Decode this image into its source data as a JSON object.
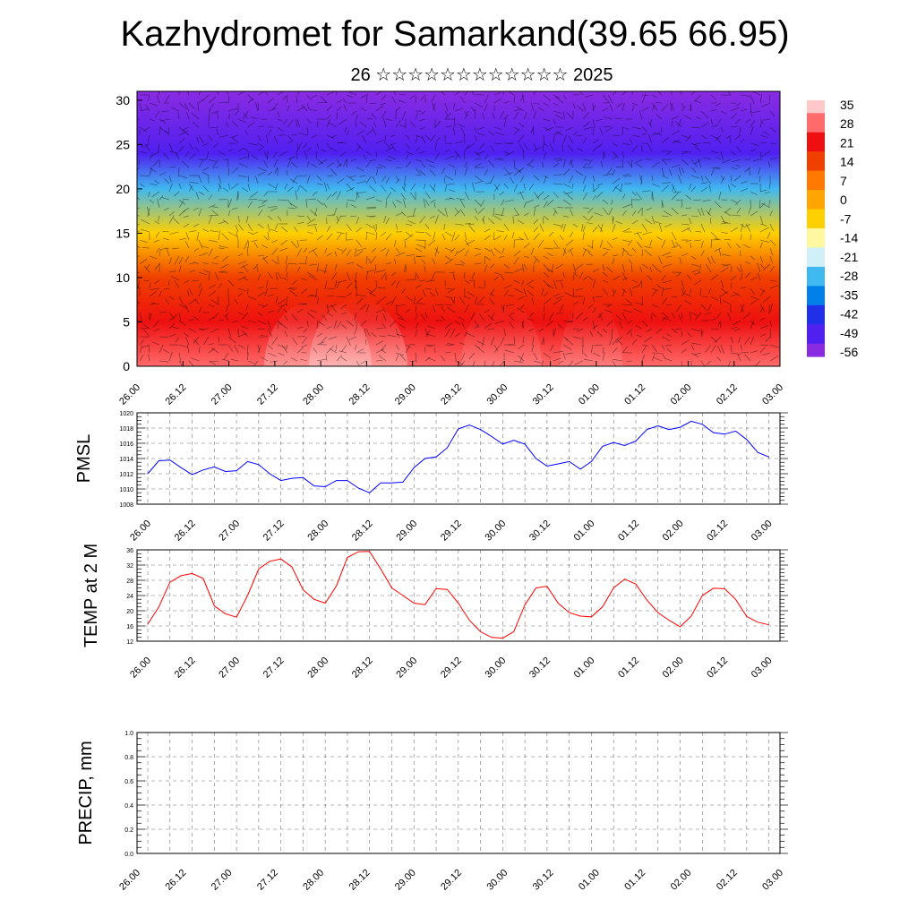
{
  "header": {
    "title": "Kazhydromet for Samarkand(39.65 66.95)",
    "subtitle": "26 ☆☆☆☆☆☆☆☆☆☆☆☆ 2025"
  },
  "chart_data": [
    {
      "type": "heatmap",
      "title": "Kazhydromet for Samarkand(39.65 66.95)",
      "subtitle": "26 ☆☆☆☆☆☆☆☆☆☆☆☆ 2025",
      "x_tick_labels": [
        "26.00",
        "26.12",
        "27.00",
        "27.12",
        "28.00",
        "28.12",
        "29.00",
        "29.12",
        "30.00",
        "30.12",
        "01.00",
        "01.12",
        "02.00",
        "02.12",
        "03.00"
      ],
      "y_ticks": [
        0,
        5,
        10,
        15,
        20,
        25,
        30
      ],
      "ylim": [
        0,
        31
      ],
      "colorbar_labels": [
        "35",
        "28",
        "21",
        "14",
        "7",
        "0",
        "-7",
        "-14",
        "-21",
        "-28",
        "-35",
        "-42",
        "-49",
        "-56"
      ],
      "colorbar_colors": [
        "#ffc8c8",
        "#ff6a6a",
        "#ee1010",
        "#f04000",
        "#ff7800",
        "#ffa500",
        "#ffd000",
        "#fff8a0",
        "#d0f0f8",
        "#40b8f0",
        "#0080e8",
        "#2030e8",
        "#5020f0",
        "#8a2be2"
      ],
      "vertical_profile": [
        {
          "height": 0,
          "value": 30
        },
        {
          "height": 5,
          "value": 24
        },
        {
          "height": 10,
          "value": 12
        },
        {
          "height": 15,
          "value": -5
        },
        {
          "height": 20,
          "value": -25
        },
        {
          "height": 24,
          "value": -50
        },
        {
          "height": 31,
          "value": -56
        }
      ],
      "overlay": "wind vectors",
      "grid": false
    },
    {
      "type": "line",
      "ylabel": "PMSL",
      "x_tick_labels": [
        "26.00",
        "26.12",
        "27.00",
        "27.12",
        "28.00",
        "28.12",
        "29.00",
        "29.12",
        "30.00",
        "30.12",
        "01.00",
        "01.12",
        "02.00",
        "02.12",
        "03.00"
      ],
      "y_ticks": [
        1008,
        1010,
        1012,
        1014,
        1016,
        1018,
        1020
      ],
      "ylim": [
        1008,
        1020
      ],
      "x": [
        0,
        3,
        6,
        9,
        12,
        15,
        18,
        21,
        24,
        27,
        30,
        33,
        36,
        39,
        42,
        45,
        48,
        51,
        54,
        57,
        60,
        63,
        66,
        69,
        72,
        75,
        78,
        81,
        84,
        87,
        90,
        93,
        96,
        99,
        102,
        105,
        108,
        111,
        114,
        117,
        120,
        123,
        126,
        129,
        132,
        135,
        138,
        141,
        144,
        147,
        150,
        153,
        156,
        159,
        162,
        165,
        168
      ],
      "series": [
        {
          "color": "#0000ff",
          "values": [
            1012.0,
            1013.7,
            1013.8,
            1012.8,
            1011.9,
            1012.5,
            1012.9,
            1012.3,
            1012.4,
            1013.6,
            1013.2,
            1012.0,
            1011.1,
            1011.4,
            1011.5,
            1010.4,
            1010.3,
            1011.1,
            1011.1,
            1010.1,
            1009.5,
            1010.8,
            1010.8,
            1010.9,
            1012.8,
            1014.0,
            1014.2,
            1015.4,
            1017.9,
            1018.4,
            1017.8,
            1016.9,
            1015.9,
            1016.4,
            1015.9,
            1014.0,
            1013.0,
            1013.3,
            1013.6,
            1012.6,
            1013.6,
            1015.6,
            1016.1,
            1015.7,
            1016.3,
            1017.8,
            1018.3,
            1017.8,
            1018.1,
            1018.9,
            1018.5,
            1017.4,
            1017.2,
            1017.6,
            1016.5,
            1014.8,
            1014.2
          ]
        }
      ],
      "grid": true
    },
    {
      "type": "line",
      "ylabel": "TEMP at 2 M",
      "x_tick_labels": [
        "26.00",
        "26.12",
        "27.00",
        "27.12",
        "28.00",
        "28.12",
        "29.00",
        "29.12",
        "30.00",
        "30.12",
        "01.00",
        "01.12",
        "02.00",
        "02.12",
        "03.00"
      ],
      "y_ticks": [
        12,
        16,
        20,
        24,
        28,
        32,
        36
      ],
      "ylim": [
        12,
        36
      ],
      "x": [
        0,
        3,
        6,
        9,
        12,
        15,
        18,
        21,
        24,
        27,
        30,
        33,
        36,
        39,
        42,
        45,
        48,
        51,
        54,
        57,
        60,
        63,
        66,
        69,
        72,
        75,
        78,
        81,
        84,
        87,
        90,
        93,
        96,
        99,
        102,
        105,
        108,
        111,
        114,
        117,
        120,
        123,
        126,
        129,
        132,
        135,
        138,
        141,
        144,
        147,
        150,
        153,
        156,
        159,
        162,
        165,
        168
      ],
      "series": [
        {
          "color": "#ff0000",
          "values": [
            16.5,
            21.0,
            27.5,
            29.2,
            29.8,
            28.5,
            21.3,
            19.2,
            18.3,
            24.0,
            31.0,
            33.0,
            33.6,
            31.5,
            25.5,
            23.0,
            22.0,
            26.5,
            34.0,
            35.5,
            35.6,
            31.0,
            26.0,
            24.0,
            22.0,
            21.6,
            25.8,
            25.6,
            22.0,
            17.5,
            14.5,
            13.0,
            12.8,
            14.5,
            21.5,
            26.0,
            26.4,
            22.0,
            19.5,
            18.6,
            18.4,
            21.0,
            26.0,
            28.3,
            27.0,
            22.8,
            19.5,
            17.5,
            15.8,
            18.6,
            24.0,
            25.9,
            25.8,
            23.0,
            18.5,
            17.0,
            16.3
          ]
        }
      ],
      "grid": true
    },
    {
      "type": "line",
      "ylabel": "PRECIP, mm",
      "x_tick_labels": [
        "26.00",
        "26.12",
        "27.00",
        "27.12",
        "28.00",
        "28.12",
        "29.00",
        "29.12",
        "30.00",
        "30.12",
        "01.00",
        "01.12",
        "02.00",
        "02.12",
        "03.00"
      ],
      "y_ticks": [
        "0.0",
        "0.2",
        "0.4",
        "0.6",
        "0.8",
        "1.0"
      ],
      "ylim": [
        0,
        1
      ],
      "x": [
        0,
        168
      ],
      "series": [
        {
          "color": "#000000",
          "values": [
            0.0,
            0.0
          ]
        }
      ],
      "grid": true
    }
  ]
}
